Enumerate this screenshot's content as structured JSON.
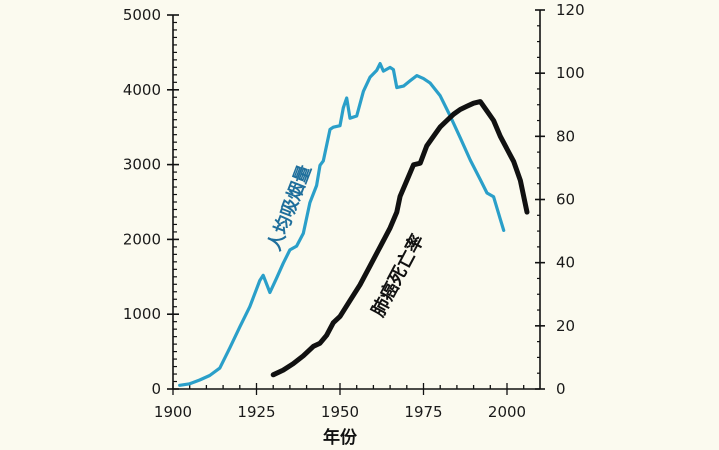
{
  "chart_data": {
    "type": "line",
    "title": "",
    "xlabel": "年份",
    "ylabel_left": "",
    "ylabel_right": "",
    "xlim": [
      1900,
      2007
    ],
    "ylim_left": [
      0,
      5000
    ],
    "ylim_right": [
      0,
      120
    ],
    "x_ticks": [
      "1900",
      "1925",
      "1950",
      "1975",
      "2000"
    ],
    "y_left_ticks": [
      "0",
      "1000",
      "2000",
      "3000",
      "4000",
      "5000"
    ],
    "y_right_ticks": [
      "0",
      "20",
      "40",
      "60",
      "80",
      "100",
      "120"
    ],
    "grid": false,
    "series": [
      {
        "name": "人均吸烟量",
        "axis": "left",
        "color": "#2a9fc9",
        "x": [
          1902,
          1905,
          1908,
          1911,
          1914,
          1917,
          1920,
          1923,
          1926,
          1927,
          1929,
          1931,
          1933,
          1935,
          1937,
          1939,
          1941,
          1943,
          1944,
          1945,
          1947,
          1948,
          1950,
          1951,
          1952,
          1953,
          1955,
          1957,
          1959,
          1961,
          1962,
          1963,
          1965,
          1966,
          1967,
          1969,
          1971,
          1973,
          1975,
          1977,
          1980,
          1983,
          1986,
          1989,
          1992,
          1994,
          1996,
          1998,
          1999
        ],
        "values": [
          50,
          70,
          120,
          180,
          280,
          550,
          830,
          1100,
          1450,
          1520,
          1290,
          1480,
          1680,
          1860,
          1910,
          2080,
          2490,
          2720,
          2990,
          3050,
          3470,
          3500,
          3520,
          3760,
          3890,
          3620,
          3650,
          3980,
          4170,
          4260,
          4350,
          4250,
          4300,
          4270,
          4030,
          4050,
          4120,
          4190,
          4150,
          4090,
          3920,
          3650,
          3360,
          3060,
          2800,
          2620,
          2570,
          2270,
          2120
        ]
      },
      {
        "name": "肺癌死亡率",
        "axis": "right",
        "color": "#111111",
        "x": [
          1930,
          1933,
          1936,
          1939,
          1942,
          1944,
          1946,
          1948,
          1950,
          1953,
          1956,
          1959,
          1962,
          1965,
          1967,
          1968,
          1970,
          1972,
          1974,
          1976,
          1978,
          1980,
          1982,
          1984,
          1986,
          1988,
          1990,
          1992,
          1994,
          1996,
          1998,
          2000,
          2002,
          2004,
          2006
        ],
        "values": [
          4.5,
          6,
          8,
          10.5,
          13.5,
          14.5,
          17,
          21,
          23,
          28,
          33,
          39,
          45,
          51,
          56,
          61,
          66,
          71,
          71.5,
          77,
          80,
          83,
          85,
          87,
          88.5,
          89.5,
          90.5,
          91,
          88,
          85,
          80,
          76,
          72,
          66,
          56
        ]
      }
    ],
    "annotations": [
      {
        "text": "人均吸烟量",
        "near": "blue curve, rising section ~1920s-1940s",
        "color": "#1f6f9c"
      },
      {
        "text": "肺癌死亡率",
        "near": "black curve, rising section ~1950s-1970s",
        "color": "#111111"
      }
    ],
    "legend": "none (inline labels)"
  },
  "labels": {
    "x_title": "年份",
    "smoking_label": "人均吸烟量",
    "cancer_label": "肺癌死亡率"
  }
}
